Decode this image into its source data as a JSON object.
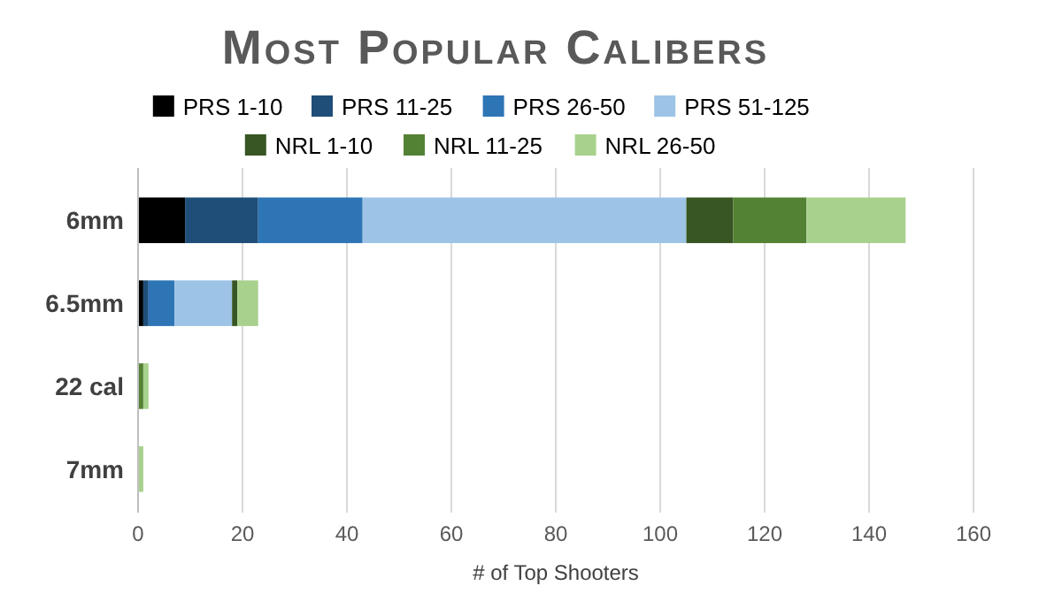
{
  "chart_data": {
    "type": "bar",
    "orientation": "horizontal",
    "stacked": true,
    "title": "Most Popular Calibers",
    "xlabel": "# of Top Shooters",
    "categories": [
      "6mm",
      "6.5mm",
      "22 cal",
      "7mm"
    ],
    "series": [
      {
        "name": "PRS 1-10",
        "color": "#000000",
        "values": [
          9,
          1,
          0,
          0
        ]
      },
      {
        "name": "PRS 11-25",
        "color": "#1f4e79",
        "values": [
          14,
          1,
          0,
          0
        ]
      },
      {
        "name": "PRS 26-50",
        "color": "#2e75b6",
        "values": [
          20,
          5,
          0,
          0
        ]
      },
      {
        "name": "PRS 51-125",
        "color": "#9dc3e6",
        "values": [
          62,
          11,
          0,
          0
        ]
      },
      {
        "name": "NRL 1-10",
        "color": "#375623",
        "values": [
          9,
          1,
          0,
          0
        ]
      },
      {
        "name": "NRL 11-25",
        "color": "#548235",
        "values": [
          14,
          0,
          1,
          0
        ]
      },
      {
        "name": "NRL 26-50",
        "color": "#a9d18e",
        "values": [
          19,
          4,
          1,
          1
        ]
      }
    ],
    "xlim": [
      0,
      160
    ],
    "xticks": [
      0,
      20,
      40,
      60,
      80,
      100,
      120,
      140,
      160
    ],
    "grid": "x",
    "legend": "top"
  }
}
